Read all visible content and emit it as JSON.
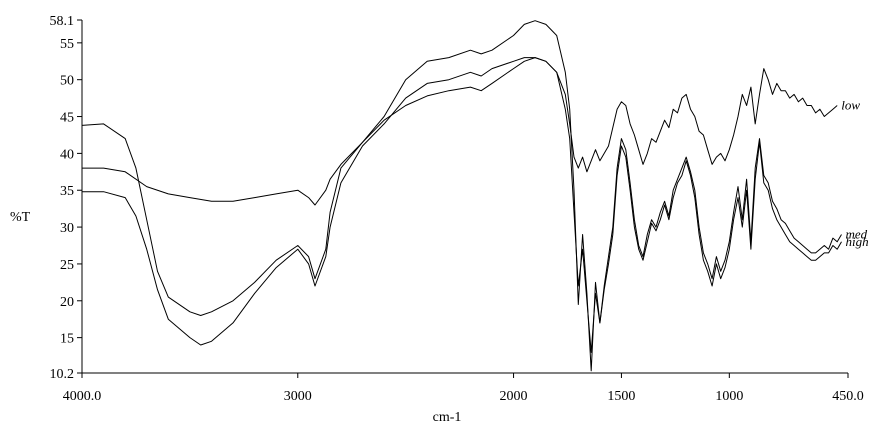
{
  "chart_data": {
    "type": "line",
    "title": "",
    "xlabel": "cm-1",
    "ylabel": "%T",
    "xlim": [
      4000.0,
      450.0
    ],
    "ylim": [
      10.2,
      58.1
    ],
    "x_reversed": true,
    "grid": false,
    "line_color": "#000000",
    "x_tick_labels": [
      "4000.0",
      "3000",
      "2000",
      "1500",
      "1000",
      "450.0"
    ],
    "x_tick_values": [
      4000,
      3000,
      2000,
      1500,
      1000,
      450
    ],
    "y_tick_labels": [
      "10.2",
      "15",
      "20",
      "25",
      "30",
      "35",
      "40",
      "45",
      "50",
      "55",
      "58.1"
    ],
    "y_tick_values": [
      10.2,
      15,
      20,
      25,
      30,
      35,
      40,
      45,
      50,
      55,
      58.1
    ],
    "series": [
      {
        "name": "low",
        "x": [
          4000,
          3900,
          3800,
          3700,
          3600,
          3500,
          3400,
          3300,
          3200,
          3100,
          3000,
          2950,
          2920,
          2870,
          2850,
          2800,
          2700,
          2600,
          2500,
          2400,
          2300,
          2200,
          2150,
          2100,
          2000,
          1950,
          1900,
          1850,
          1800,
          1760,
          1740,
          1720,
          1700,
          1680,
          1660,
          1640,
          1620,
          1600,
          1580,
          1560,
          1540,
          1520,
          1500,
          1480,
          1460,
          1440,
          1420,
          1400,
          1380,
          1360,
          1340,
          1320,
          1300,
          1280,
          1260,
          1240,
          1220,
          1200,
          1180,
          1160,
          1140,
          1120,
          1100,
          1080,
          1060,
          1040,
          1020,
          1000,
          980,
          960,
          940,
          920,
          900,
          880,
          860,
          840,
          820,
          800,
          780,
          760,
          740,
          720,
          700,
          680,
          660,
          640,
          620,
          600,
          580,
          560,
          540,
          520,
          500
        ],
        "y": [
          38.0,
          38.0,
          37.5,
          35.5,
          34.5,
          34.0,
          33.5,
          33.5,
          34.0,
          34.5,
          35.0,
          34.0,
          33.0,
          35.0,
          36.5,
          38.5,
          41.5,
          44.5,
          46.5,
          47.8,
          48.5,
          49.0,
          48.5,
          49.5,
          51.5,
          52.5,
          53.0,
          52.5,
          51.0,
          48.0,
          44.0,
          39.5,
          38.0,
          39.5,
          37.5,
          39.0,
          40.5,
          39.0,
          40.0,
          41.0,
          43.5,
          46.0,
          47.0,
          46.5,
          44.0,
          42.5,
          40.5,
          38.5,
          40.0,
          42.0,
          41.5,
          43.0,
          44.5,
          43.5,
          46.0,
          45.5,
          47.5,
          48.0,
          46.0,
          45.0,
          43.0,
          42.5,
          40.5,
          38.5,
          39.5,
          40.0,
          39.0,
          40.5,
          42.5,
          45.0,
          48.0,
          46.5,
          49.0,
          44.0,
          48.0,
          51.5,
          50.0,
          48.0,
          49.5,
          48.5,
          48.5,
          47.5,
          48.0,
          47.0,
          47.5,
          46.5,
          46.5,
          45.5,
          46.0,
          45.0,
          45.5,
          46.0,
          46.5
        ]
      },
      {
        "name": "med",
        "x": [
          4000,
          3900,
          3800,
          3750,
          3700,
          3650,
          3600,
          3500,
          3450,
          3400,
          3300,
          3200,
          3100,
          3000,
          2950,
          2920,
          2870,
          2850,
          2800,
          2700,
          2600,
          2500,
          2400,
          2300,
          2200,
          2150,
          2100,
          2000,
          1950,
          1900,
          1850,
          1800,
          1760,
          1740,
          1720,
          1700,
          1680,
          1660,
          1640,
          1620,
          1600,
          1580,
          1560,
          1540,
          1520,
          1500,
          1480,
          1460,
          1440,
          1420,
          1400,
          1380,
          1360,
          1340,
          1320,
          1300,
          1280,
          1260,
          1240,
          1220,
          1200,
          1180,
          1160,
          1140,
          1120,
          1100,
          1080,
          1060,
          1040,
          1020,
          1000,
          980,
          960,
          940,
          920,
          900,
          880,
          860,
          840,
          820,
          800,
          780,
          760,
          740,
          720,
          700,
          680,
          660,
          640,
          620,
          600,
          580,
          560,
          540,
          520,
          500,
          480
        ],
        "y": [
          43.8,
          44.0,
          42.0,
          38.0,
          31.0,
          24.0,
          20.5,
          18.5,
          18.0,
          18.5,
          20.0,
          22.5,
          25.5,
          27.5,
          26.0,
          23.0,
          27.0,
          32.0,
          38.0,
          41.5,
          45.0,
          50.0,
          52.5,
          53.0,
          54.0,
          53.5,
          54.0,
          56.0,
          57.5,
          58.0,
          57.5,
          56.0,
          51.0,
          46.0,
          35.0,
          19.5,
          29.0,
          21.0,
          10.5,
          22.5,
          17.0,
          22.0,
          26.0,
          30.0,
          38.0,
          42.0,
          40.5,
          36.0,
          31.0,
          27.5,
          26.0,
          29.0,
          31.0,
          30.0,
          32.0,
          33.5,
          31.5,
          35.0,
          36.5,
          38.0,
          39.5,
          37.5,
          35.0,
          30.0,
          26.5,
          25.0,
          23.0,
          26.0,
          24.0,
          25.5,
          28.0,
          32.0,
          35.5,
          31.0,
          36.5,
          28.0,
          38.0,
          42.0,
          37.0,
          36.0,
          33.5,
          32.5,
          31.0,
          30.5,
          29.5,
          28.5,
          28.0,
          27.5,
          27.0,
          26.5,
          26.5,
          27.0,
          27.5,
          27.0,
          28.5,
          28.0,
          29.0
        ]
      },
      {
        "name": "high",
        "x": [
          4000,
          3900,
          3800,
          3750,
          3700,
          3650,
          3600,
          3500,
          3450,
          3400,
          3300,
          3200,
          3100,
          3000,
          2950,
          2920,
          2870,
          2850,
          2800,
          2700,
          2600,
          2500,
          2400,
          2300,
          2200,
          2150,
          2100,
          2000,
          1950,
          1900,
          1850,
          1800,
          1760,
          1740,
          1720,
          1700,
          1680,
          1660,
          1640,
          1620,
          1600,
          1580,
          1560,
          1540,
          1520,
          1500,
          1480,
          1460,
          1440,
          1420,
          1400,
          1380,
          1360,
          1340,
          1320,
          1300,
          1280,
          1260,
          1240,
          1220,
          1200,
          1180,
          1160,
          1140,
          1120,
          1100,
          1080,
          1060,
          1040,
          1020,
          1000,
          980,
          960,
          940,
          920,
          900,
          880,
          860,
          840,
          820,
          800,
          780,
          760,
          740,
          720,
          700,
          680,
          660,
          640,
          620,
          600,
          580,
          560,
          540,
          520,
          500,
          480
        ],
        "y": [
          34.8,
          34.8,
          34.0,
          31.5,
          27.0,
          21.5,
          17.5,
          15.0,
          14.0,
          14.5,
          17.0,
          21.0,
          24.5,
          27.0,
          25.0,
          22.0,
          26.0,
          30.0,
          36.0,
          41.0,
          44.0,
          47.5,
          49.5,
          50.0,
          51.0,
          50.5,
          51.5,
          52.5,
          53.0,
          53.0,
          52.5,
          51.0,
          46.0,
          42.0,
          32.0,
          22.0,
          27.0,
          20.0,
          13.0,
          21.0,
          17.0,
          21.5,
          25.0,
          29.0,
          37.0,
          41.0,
          39.5,
          35.0,
          30.0,
          27.0,
          25.5,
          28.0,
          30.5,
          29.5,
          31.0,
          33.0,
          31.0,
          34.0,
          36.0,
          37.0,
          39.0,
          37.0,
          34.0,
          29.0,
          25.5,
          24.0,
          22.0,
          25.0,
          23.0,
          24.5,
          27.0,
          31.0,
          34.0,
          30.0,
          35.0,
          27.0,
          36.5,
          41.5,
          36.0,
          35.0,
          32.5,
          31.0,
          30.0,
          29.0,
          28.0,
          27.5,
          27.0,
          26.5,
          26.0,
          25.5,
          25.5,
          26.0,
          26.5,
          26.5,
          27.5,
          27.0,
          28.0
        ]
      }
    ]
  }
}
